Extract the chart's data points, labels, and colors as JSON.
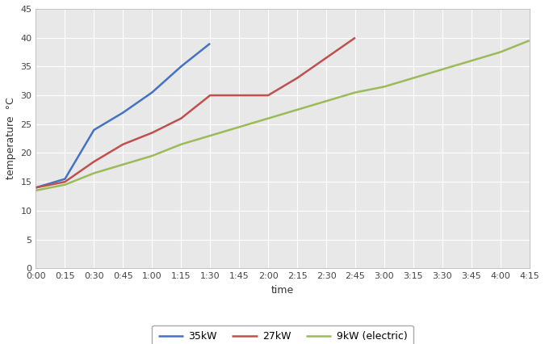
{
  "title": "",
  "xlabel": "time",
  "ylabel": "temperature  °C",
  "ylim": [
    0,
    45
  ],
  "xlim_minutes": [
    0,
    255
  ],
  "plot_bg_color": "#e8e8e8",
  "fig_bg_color": "#ffffff",
  "grid_color": "#ffffff",
  "series": [
    {
      "label": "35kW",
      "color": "#4472c4",
      "x_minutes": [
        0,
        15,
        30,
        45,
        60,
        75,
        90
      ],
      "y": [
        14.0,
        15.5,
        24.0,
        27.0,
        30.5,
        35.0,
        39.0
      ]
    },
    {
      "label": "27kW",
      "color": "#c0504d",
      "x_minutes": [
        0,
        15,
        30,
        45,
        60,
        75,
        90,
        105,
        120,
        135,
        150,
        165
      ],
      "y": [
        14.0,
        15.0,
        18.5,
        21.5,
        23.5,
        26.0,
        30.0,
        30.0,
        30.0,
        33.0,
        36.5,
        40.0
      ]
    },
    {
      "label": "9kW (electric)",
      "color": "#9bbb59",
      "x_minutes": [
        0,
        15,
        30,
        45,
        60,
        75,
        90,
        105,
        120,
        135,
        150,
        165,
        180,
        195,
        210,
        225,
        240,
        255
      ],
      "y": [
        13.5,
        14.5,
        16.5,
        18.0,
        19.5,
        21.5,
        23.0,
        24.5,
        26.0,
        27.5,
        29.0,
        30.5,
        31.5,
        33.0,
        34.5,
        36.0,
        37.5,
        39.5
      ]
    }
  ],
  "xtick_minutes": [
    0,
    15,
    30,
    45,
    60,
    75,
    90,
    105,
    120,
    135,
    150,
    165,
    180,
    195,
    210,
    225,
    240,
    255
  ],
  "xtick_labels": [
    "0:00",
    "0:15",
    "0:30",
    "0:45",
    "1:00",
    "1:15",
    "1:30",
    "1:45",
    "2:00",
    "2:15",
    "2:30",
    "2:45",
    "3:00",
    "3:15",
    "3:30",
    "3:45",
    "4:00",
    "4:15"
  ],
  "ytick_values": [
    0,
    5,
    10,
    15,
    20,
    25,
    30,
    35,
    40,
    45
  ],
  "linewidth": 1.8
}
